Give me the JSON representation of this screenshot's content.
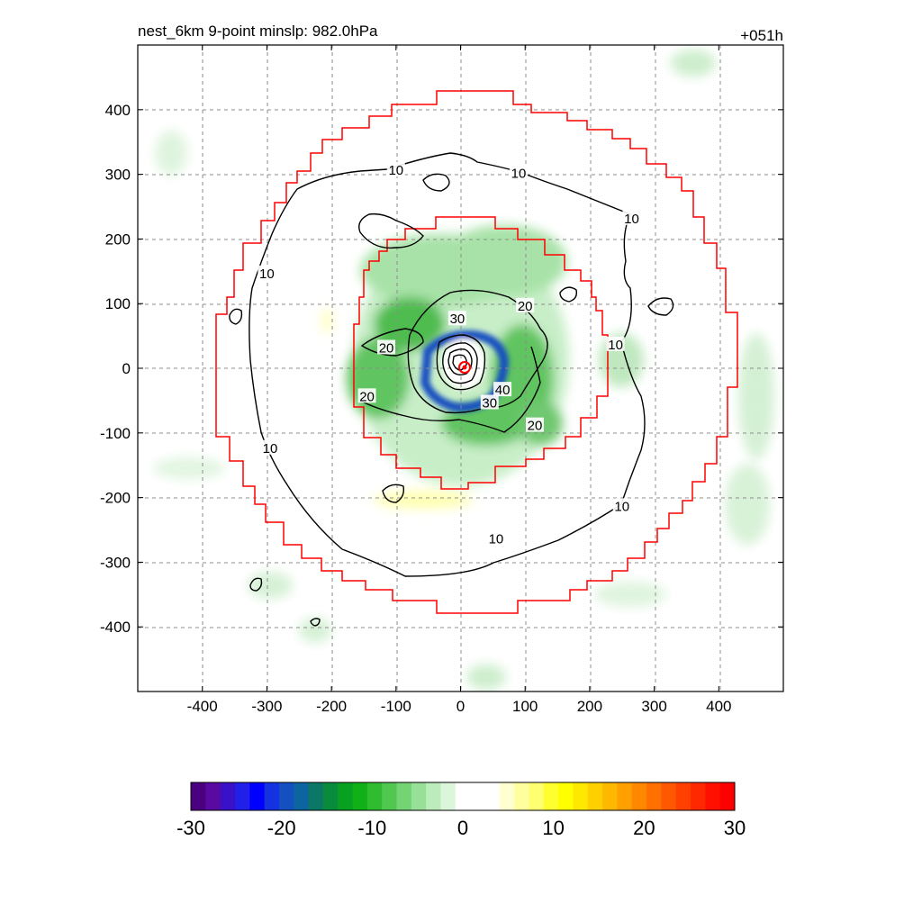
{
  "chart_data": {
    "type": "contour",
    "title_left": "nest_6km  9-point minslp: 982.0hPa",
    "title_right": "+051h",
    "x_ticks": [
      -400,
      -300,
      -200,
      -100,
      0,
      100,
      200,
      300,
      400
    ],
    "y_ticks": [
      400,
      300,
      200,
      100,
      0,
      -100,
      -200,
      -300,
      -400
    ],
    "xlim": [
      -500,
      500
    ],
    "ylim": [
      -500,
      500
    ],
    "grid": true,
    "contour_labels": [
      "10",
      "10",
      "10",
      "10",
      "10",
      "10",
      "10",
      "10",
      "20",
      "20",
      "20",
      "20",
      "30",
      "30",
      "40"
    ],
    "colorbar": {
      "ticks": [
        "-30",
        "-20",
        "-10",
        "0",
        "10",
        "20",
        "30"
      ],
      "range": [
        -30,
        30
      ],
      "colors": [
        "#4b0082",
        "#5a0aa0",
        "#3a10c8",
        "#2020e8",
        "#0000ff",
        "#1432e0",
        "#1450c0",
        "#0c64a0",
        "#0a7864",
        "#088c3c",
        "#08a020",
        "#10b018",
        "#30bc30",
        "#50c850",
        "#74d474",
        "#98e098",
        "#bcecbc",
        "#dcf6dc",
        "#ffffff",
        "#ffffff",
        "#ffffff",
        "#ffffd0",
        "#ffffa0",
        "#ffff70",
        "#ffff30",
        "#ffff00",
        "#ffe800",
        "#ffd000",
        "#ffb800",
        "#ffa000",
        "#ff8800",
        "#ff7000",
        "#ff5800",
        "#ff4000",
        "#ff2800",
        "#ff1000",
        "#ff0000"
      ]
    }
  }
}
